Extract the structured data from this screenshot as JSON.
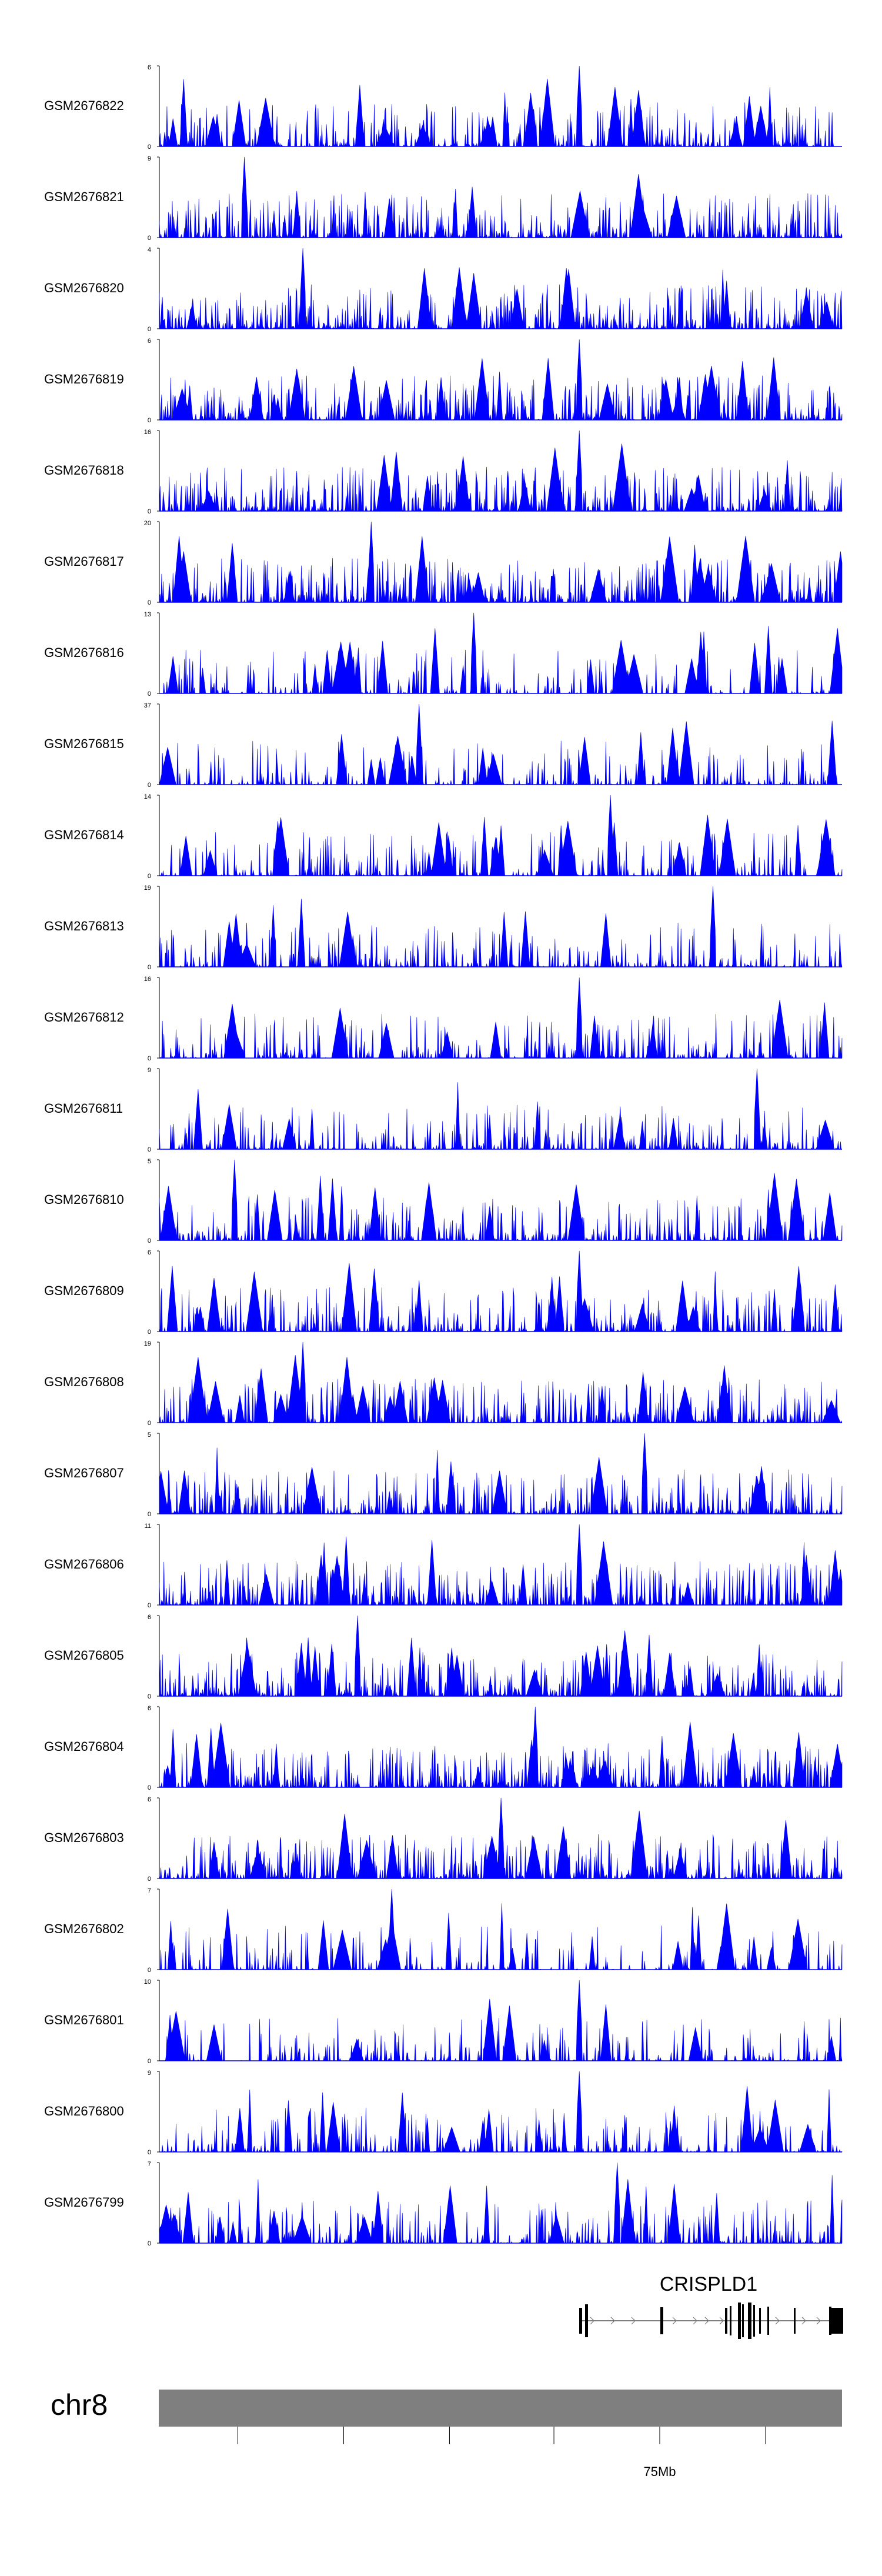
{
  "chart_data": {
    "type": "area",
    "color": "#0000ff",
    "tracks": [
      {
        "name": "GSM2676822",
        "ymax": 6,
        "ymin": 0,
        "peak_pos": 0.615
      },
      {
        "name": "GSM2676821",
        "ymax": 9,
        "ymin": 0,
        "peak_pos": 0.125
      },
      {
        "name": "GSM2676820",
        "ymax": 4,
        "ymin": 0,
        "peak_pos": 0.21
      },
      {
        "name": "GSM2676819",
        "ymax": 6,
        "ymin": 0,
        "peak_pos": 0.615
      },
      {
        "name": "GSM2676818",
        "ymax": 16,
        "ymin": 0,
        "peak_pos": 0.615
      },
      {
        "name": "GSM2676817",
        "ymax": 20,
        "ymin": 0,
        "peak_pos": 0.31
      },
      {
        "name": "GSM2676816",
        "ymax": 13,
        "ymin": 0,
        "peak_pos": 0.46
      },
      {
        "name": "GSM2676815",
        "ymax": 37,
        "ymin": 0,
        "peak_pos": 0.38
      },
      {
        "name": "GSM2676814",
        "ymax": 14,
        "ymin": 0,
        "peak_pos": 0.66
      },
      {
        "name": "GSM2676813",
        "ymax": 19,
        "ymin": 0,
        "peak_pos": 0.81
      },
      {
        "name": "GSM2676812",
        "ymax": 16,
        "ymin": 0,
        "peak_pos": 0.615
      },
      {
        "name": "GSM2676811",
        "ymax": 9,
        "ymin": 0,
        "peak_pos": 0.875
      },
      {
        "name": "GSM2676810",
        "ymax": 5,
        "ymin": 0,
        "peak_pos": 0.11
      },
      {
        "name": "GSM2676809",
        "ymax": 6,
        "ymin": 0,
        "peak_pos": 0.615
      },
      {
        "name": "GSM2676808",
        "ymax": 19,
        "ymin": 0,
        "peak_pos": 0.21
      },
      {
        "name": "GSM2676807",
        "ymax": 5,
        "ymin": 0,
        "peak_pos": 0.71
      },
      {
        "name": "GSM2676806",
        "ymax": 11,
        "ymin": 0,
        "peak_pos": 0.615
      },
      {
        "name": "GSM2676805",
        "ymax": 6,
        "ymin": 0,
        "peak_pos": 0.29
      },
      {
        "name": "GSM2676804",
        "ymax": 6,
        "ymin": 0,
        "peak_pos": 0.55
      },
      {
        "name": "GSM2676803",
        "ymax": 6,
        "ymin": 0,
        "peak_pos": 0.5
      },
      {
        "name": "GSM2676802",
        "ymax": 7,
        "ymin": 0,
        "peak_pos": 0.34
      },
      {
        "name": "GSM2676801",
        "ymax": 10,
        "ymin": 0,
        "peak_pos": 0.615
      },
      {
        "name": "GSM2676800",
        "ymax": 9,
        "ymin": 0,
        "peak_pos": 0.615
      },
      {
        "name": "GSM2676799",
        "ymax": 7,
        "ymin": 0,
        "peak_pos": 0.67
      }
    ],
    "gene": {
      "name": "CRISPLD1",
      "strand": "+"
    },
    "chromosome": "chr8",
    "ticks": [
      {
        "label": "",
        "pos": 0.115
      },
      {
        "label": "",
        "pos": 0.27
      },
      {
        "label": "",
        "pos": 0.425
      },
      {
        "label": "",
        "pos": 0.578
      },
      {
        "label": "75Mb",
        "pos": 0.733
      },
      {
        "label": "",
        "pos": 0.888
      }
    ],
    "grid": false
  }
}
